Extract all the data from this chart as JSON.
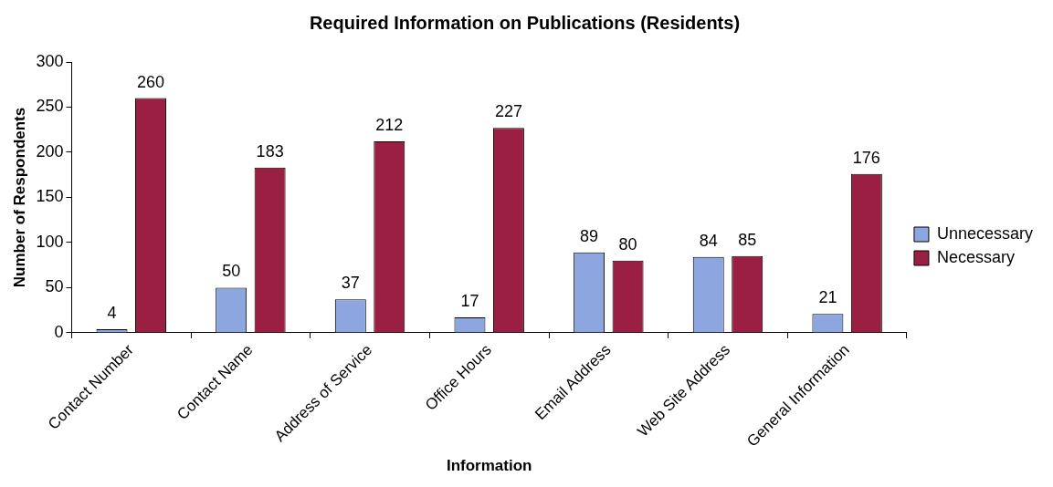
{
  "chart_data": {
    "type": "bar",
    "title": "Required Information on Publications (Residents)",
    "xlabel": "Information",
    "ylabel": "Number of Respondents",
    "categories": [
      "Contact Number",
      "Contact Name",
      "Address of Service",
      "Office Hours",
      "Email Address",
      "Web Site Address",
      "General Information"
    ],
    "series": [
      {
        "name": "Unnecessary",
        "color": "#8ea6e0",
        "values": [
          4,
          50,
          37,
          17,
          89,
          84,
          21
        ]
      },
      {
        "name": "Necessary",
        "color": "#9a1f42",
        "values": [
          260,
          183,
          212,
          227,
          80,
          85,
          176
        ]
      }
    ],
    "ylim": [
      0,
      300
    ],
    "yticks": [
      0,
      50,
      100,
      150,
      200,
      250,
      300
    ],
    "legend": "right",
    "data_labels": true
  }
}
